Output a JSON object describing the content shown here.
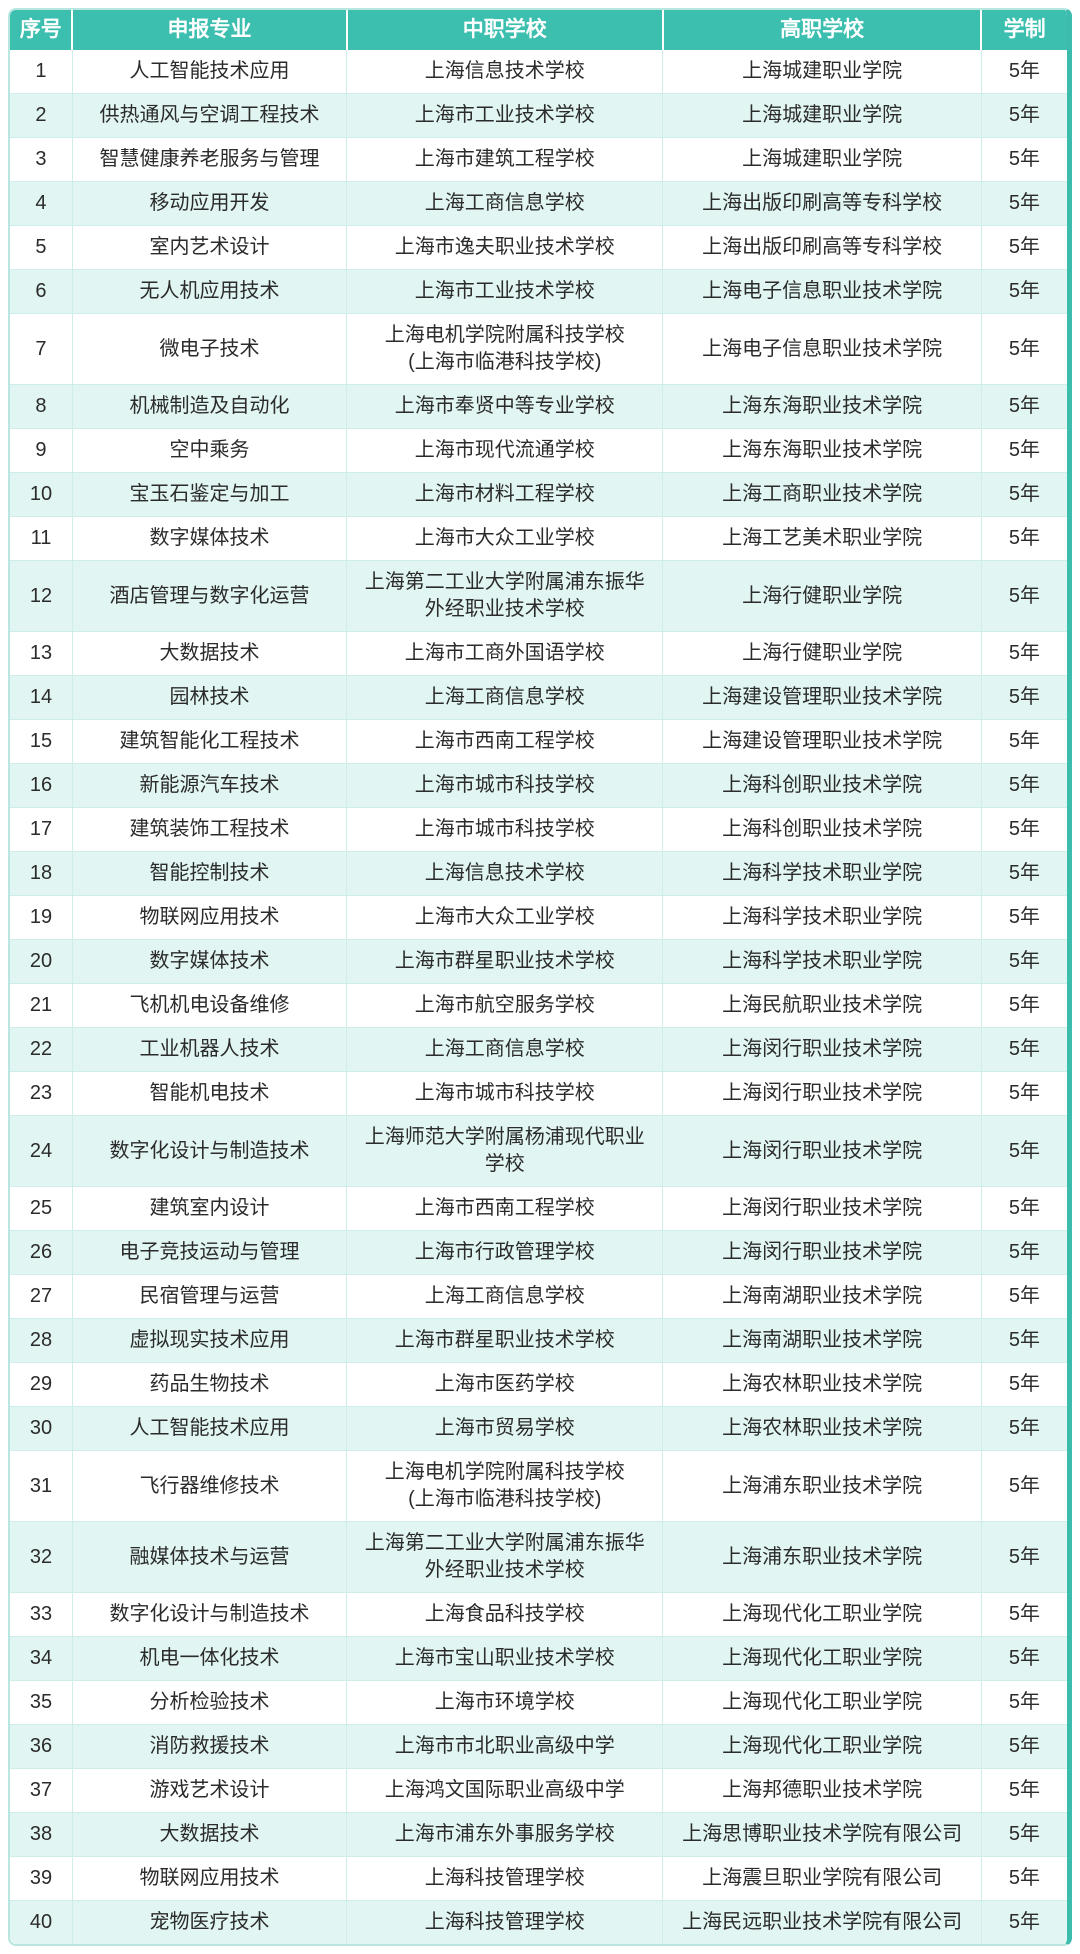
{
  "colors": {
    "header_bg": "#3dbfb0",
    "header_text": "#ffffff",
    "row_alt_bg": "#e1f6f2",
    "gridline": "#cfeeea",
    "outer_border": "#3bbcad",
    "body_text": "#2b2b2b"
  },
  "table": {
    "headers": [
      "序号",
      "申报专业",
      "中职学校",
      "高职学校",
      "学制"
    ],
    "rows": [
      [
        "1",
        "人工智能技术应用",
        "上海信息技术学校",
        "上海城建职业学院",
        "5年"
      ],
      [
        "2",
        "供热通风与空调工程技术",
        "上海市工业技术学校",
        "上海城建职业学院",
        "5年"
      ],
      [
        "3",
        "智慧健康养老服务与管理",
        "上海市建筑工程学校",
        "上海城建职业学院",
        "5年"
      ],
      [
        "4",
        "移动应用开发",
        "上海工商信息学校",
        "上海出版印刷高等专科学校",
        "5年"
      ],
      [
        "5",
        "室内艺术设计",
        "上海市逸夫职业技术学校",
        "上海出版印刷高等专科学校",
        "5年"
      ],
      [
        "6",
        "无人机应用技术",
        "上海市工业技术学校",
        "上海电子信息职业技术学院",
        "5年"
      ],
      [
        "7",
        "微电子技术",
        "上海电机学院附属科技学校\n(上海市临港科技学校)",
        "上海电子信息职业技术学院",
        "5年"
      ],
      [
        "8",
        "机械制造及自动化",
        "上海市奉贤中等专业学校",
        "上海东海职业技术学院",
        "5年"
      ],
      [
        "9",
        "空中乘务",
        "上海市现代流通学校",
        "上海东海职业技术学院",
        "5年"
      ],
      [
        "10",
        "宝玉石鉴定与加工",
        "上海市材料工程学校",
        "上海工商职业技术学院",
        "5年"
      ],
      [
        "11",
        "数字媒体技术",
        "上海市大众工业学校",
        "上海工艺美术职业学院",
        "5年"
      ],
      [
        "12",
        "酒店管理与数字化运营",
        "上海第二工业大学附属浦东振华\n外经职业技术学校",
        "上海行健职业学院",
        "5年"
      ],
      [
        "13",
        "大数据技术",
        "上海市工商外国语学校",
        "上海行健职业学院",
        "5年"
      ],
      [
        "14",
        "园林技术",
        "上海工商信息学校",
        "上海建设管理职业技术学院",
        "5年"
      ],
      [
        "15",
        "建筑智能化工程技术",
        "上海市西南工程学校",
        "上海建设管理职业技术学院",
        "5年"
      ],
      [
        "16",
        "新能源汽车技术",
        "上海市城市科技学校",
        "上海科创职业技术学院",
        "5年"
      ],
      [
        "17",
        "建筑装饰工程技术",
        "上海市城市科技学校",
        "上海科创职业技术学院",
        "5年"
      ],
      [
        "18",
        "智能控制技术",
        "上海信息技术学校",
        "上海科学技术职业学院",
        "5年"
      ],
      [
        "19",
        "物联网应用技术",
        "上海市大众工业学校",
        "上海科学技术职业学院",
        "5年"
      ],
      [
        "20",
        "数字媒体技术",
        "上海市群星职业技术学校",
        "上海科学技术职业学院",
        "5年"
      ],
      [
        "21",
        "飞机机电设备维修",
        "上海市航空服务学校",
        "上海民航职业技术学院",
        "5年"
      ],
      [
        "22",
        "工业机器人技术",
        "上海工商信息学校",
        "上海闵行职业技术学院",
        "5年"
      ],
      [
        "23",
        "智能机电技术",
        "上海市城市科技学校",
        "上海闵行职业技术学院",
        "5年"
      ],
      [
        "24",
        "数字化设计与制造技术",
        "上海师范大学附属杨浦现代职业\n学校",
        "上海闵行职业技术学院",
        "5年"
      ],
      [
        "25",
        "建筑室内设计",
        "上海市西南工程学校",
        "上海闵行职业技术学院",
        "5年"
      ],
      [
        "26",
        "电子竞技运动与管理",
        "上海市行政管理学校",
        "上海闵行职业技术学院",
        "5年"
      ],
      [
        "27",
        "民宿管理与运营",
        "上海工商信息学校",
        "上海南湖职业技术学院",
        "5年"
      ],
      [
        "28",
        "虚拟现实技术应用",
        "上海市群星职业技术学校",
        "上海南湖职业技术学院",
        "5年"
      ],
      [
        "29",
        "药品生物技术",
        "上海市医药学校",
        "上海农林职业技术学院",
        "5年"
      ],
      [
        "30",
        "人工智能技术应用",
        "上海市贸易学校",
        "上海农林职业技术学院",
        "5年"
      ],
      [
        "31",
        "飞行器维修技术",
        "上海电机学院附属科技学校\n(上海市临港科技学校)",
        "上海浦东职业技术学院",
        "5年"
      ],
      [
        "32",
        "融媒体技术与运营",
        "上海第二工业大学附属浦东振华\n外经职业技术学校",
        "上海浦东职业技术学院",
        "5年"
      ],
      [
        "33",
        "数字化设计与制造技术",
        "上海食品科技学校",
        "上海现代化工职业学院",
        "5年"
      ],
      [
        "34",
        "机电一体化技术",
        "上海市宝山职业技术学校",
        "上海现代化工职业学院",
        "5年"
      ],
      [
        "35",
        "分析检验技术",
        "上海市环境学校",
        "上海现代化工职业学院",
        "5年"
      ],
      [
        "36",
        "消防救援技术",
        "上海市市北职业高级中学",
        "上海现代化工职业学院",
        "5年"
      ],
      [
        "37",
        "游戏艺术设计",
        "上海鸿文国际职业高级中学",
        "上海邦德职业技术学院",
        "5年"
      ],
      [
        "38",
        "大数据技术",
        "上海市浦东外事服务学校",
        "上海思博职业技术学院有限公司",
        "5年"
      ],
      [
        "39",
        "物联网应用技术",
        "上海科技管理学校",
        "上海震旦职业学院有限公司",
        "5年"
      ],
      [
        "40",
        "宠物医疗技术",
        "上海科技管理学校",
        "上海民远职业技术学院有限公司",
        "5年"
      ]
    ]
  }
}
